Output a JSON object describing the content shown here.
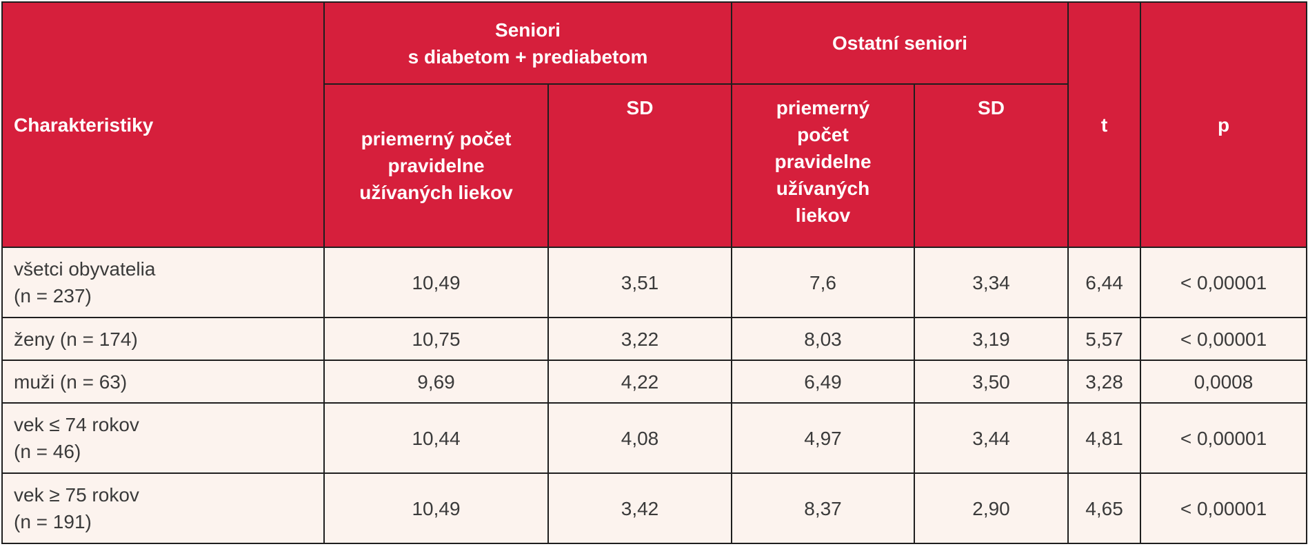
{
  "header": {
    "characteristics": "Charakteristiky",
    "group1": {
      "line1": "Seniori",
      "line2": "s diabetom + prediabetom"
    },
    "group2": "Ostatní seniori",
    "t": "t",
    "p": "p",
    "mean1": {
      "line1": "priemerný počet",
      "line2": "pravidelne",
      "line3": "užívaných liekov"
    },
    "sd1": "SD",
    "mean2": {
      "line1": "priemerný",
      "line2": "počet",
      "line3": "pravidelne",
      "line4": "užívaných",
      "line5": "liekov"
    },
    "sd2": "SD"
  },
  "rows": [
    {
      "label_line1": "všetci obyvatelia",
      "label_line2": "(n = 237)",
      "mean1": "10,49",
      "sd1": "3,51",
      "mean2": "7,6",
      "sd2": "3,34",
      "t": "6,44",
      "p": "< 0,00001"
    },
    {
      "label_line1": "ženy (n = 174)",
      "label_line2": "",
      "mean1": "10,75",
      "sd1": "3,22",
      "mean2": "8,03",
      "sd2": "3,19",
      "t": "5,57",
      "p": "< 0,00001"
    },
    {
      "label_line1": "muži (n = 63)",
      "label_line2": "",
      "mean1": "9,69",
      "sd1": "4,22",
      "mean2": "6,49",
      "sd2": "3,50",
      "t": "3,28",
      "p": "0,0008"
    },
    {
      "label_line1": "vek ≤ 74 rokov",
      "label_line2": "(n = 46)",
      "mean1": "10,44",
      "sd1": "4,08",
      "mean2": "4,97",
      "sd2": "3,44",
      "t": "4,81",
      "p": "< 0,00001"
    },
    {
      "label_line1": "vek ≥ 75 rokov",
      "label_line2": "(n = 191)",
      "mean1": "10,49",
      "sd1": "3,42",
      "mean2": "8,37",
      "sd2": "2,90",
      "t": "4,65",
      "p": "< 0,00001"
    }
  ]
}
